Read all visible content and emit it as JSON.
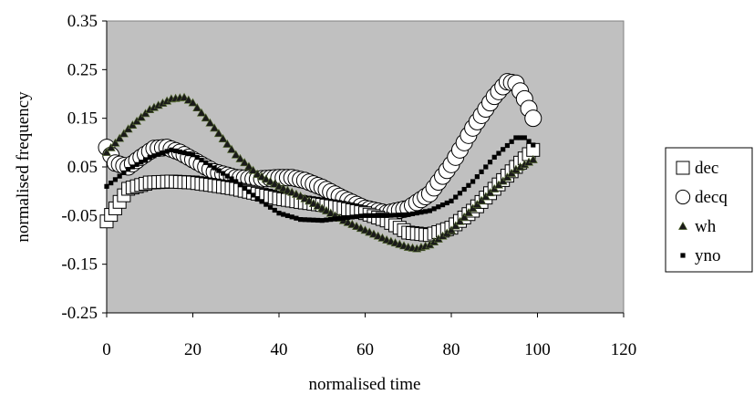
{
  "chart_data": {
    "type": "scatter",
    "title": "",
    "xlabel": "normalised time",
    "ylabel": "normalised frequency",
    "xlim": [
      0,
      120
    ],
    "ylim": [
      -0.25,
      0.35
    ],
    "x_ticks": [
      "0",
      "20",
      "40",
      "60",
      "80",
      "100",
      "120"
    ],
    "y_ticks": [
      "0.35",
      "0.25",
      "0.15",
      "0.05",
      "-0.05",
      "-0.15",
      "-0.25"
    ],
    "x_tick_values": [
      0,
      20,
      40,
      60,
      80,
      100,
      120
    ],
    "y_tick_values": [
      0.35,
      0.25,
      0.15,
      0.05,
      -0.05,
      -0.15,
      -0.25
    ],
    "grid": false,
    "plot_background": "#c0c0c0",
    "legend_position": "right",
    "series": [
      {
        "name": "dec",
        "marker": "open-square",
        "x": [
          0,
          5,
          10,
          15,
          20,
          25,
          30,
          35,
          40,
          45,
          50,
          55,
          60,
          65,
          70,
          75,
          80,
          85,
          90,
          95,
          99
        ],
        "y": [
          -0.062,
          0.005,
          0.018,
          0.02,
          0.018,
          0.012,
          0.005,
          -0.005,
          -0.015,
          -0.022,
          -0.028,
          -0.035,
          -0.045,
          -0.06,
          -0.085,
          -0.09,
          -0.075,
          -0.04,
          0.005,
          0.05,
          0.085
        ]
      },
      {
        "name": "decq",
        "marker": "open-circle",
        "x": [
          0,
          2,
          5,
          8,
          11,
          14,
          17,
          20,
          25,
          30,
          35,
          40,
          43,
          46,
          50,
          55,
          60,
          65,
          70,
          75,
          80,
          85,
          90,
          93,
          95,
          97,
          99
        ],
        "y": [
          0.09,
          0.058,
          0.05,
          0.07,
          0.088,
          0.09,
          0.08,
          0.065,
          0.04,
          0.028,
          0.025,
          0.028,
          0.028,
          0.022,
          0.008,
          -0.015,
          -0.035,
          -0.045,
          -0.035,
          -0.005,
          0.055,
          0.13,
          0.195,
          0.225,
          0.222,
          0.19,
          0.15
        ]
      },
      {
        "name": "wh",
        "marker": "filled-triangle",
        "x": [
          0,
          5,
          10,
          15,
          18,
          20,
          25,
          30,
          35,
          40,
          45,
          50,
          55,
          60,
          65,
          70,
          72,
          75,
          80,
          85,
          90,
          95,
          99
        ],
        "y": [
          0.08,
          0.128,
          0.168,
          0.19,
          0.193,
          0.182,
          0.13,
          0.075,
          0.035,
          0.01,
          -0.01,
          -0.035,
          -0.06,
          -0.08,
          -0.1,
          -0.115,
          -0.118,
          -0.11,
          -0.08,
          -0.035,
          0.005,
          0.045,
          0.065
        ]
      },
      {
        "name": "yno",
        "marker": "filled-small-square",
        "x": [
          0,
          5,
          10,
          15,
          20,
          25,
          30,
          35,
          40,
          45,
          50,
          55,
          60,
          65,
          70,
          75,
          80,
          85,
          90,
          95,
          97,
          99
        ],
        "y": [
          0.01,
          0.045,
          0.07,
          0.085,
          0.075,
          0.048,
          0.02,
          -0.015,
          -0.045,
          -0.058,
          -0.06,
          -0.055,
          -0.05,
          -0.05,
          -0.048,
          -0.04,
          -0.02,
          0.02,
          0.07,
          0.11,
          0.11,
          0.095
        ]
      }
    ]
  }
}
